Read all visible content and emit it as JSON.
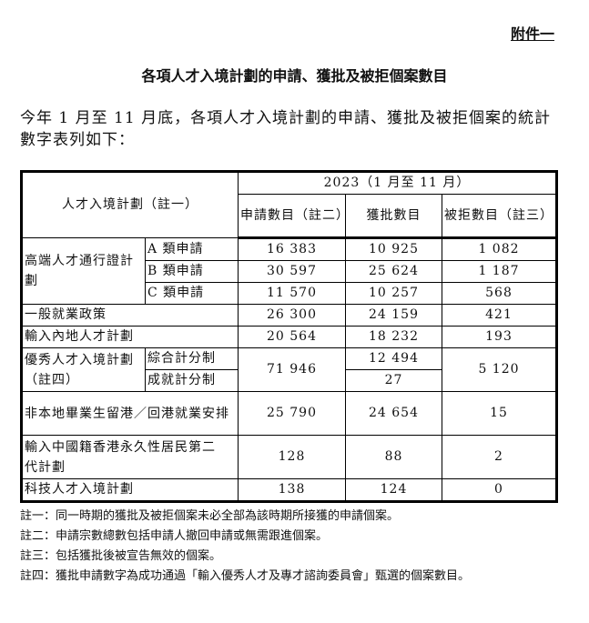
{
  "annex": "附件一",
  "title": "各項人才入境計劃的申請、獲批及被拒個案數目",
  "intro": "今年 1 月至 11 月底，各項人才入境計劃的申請、獲批及被拒個案的統計數字表列如下：",
  "table": {
    "col_scheme": "人才入境計劃（註一）",
    "period": "2023（1 月至 11 月）",
    "col_applied": "申請數目（註二）",
    "col_approved": "獲批數目",
    "col_refused": "被拒數目（註三）",
    "rows": [
      {
        "scheme": "高端人才通行證計劃",
        "sub": "A 類申請",
        "applied": "16 383",
        "approved": "10 925",
        "refused": "1 082"
      },
      {
        "sub": "B 類申請",
        "applied": "30 597",
        "approved": "25 624",
        "refused": "1 187"
      },
      {
        "sub": "C 類申請",
        "applied": "11 570",
        "approved": "10 257",
        "refused": "568"
      },
      {
        "scheme": "一般就業政策",
        "applied": "26 300",
        "approved": "24 159",
        "refused": "421"
      },
      {
        "scheme": "輸入內地人才計劃",
        "applied": "20 564",
        "approved": "18 232",
        "refused": "193"
      },
      {
        "scheme": "優秀人才入境計劃（註四）",
        "sub": "綜合計分制",
        "applied": "71 946",
        "approved": "12 494",
        "refused": "5 120"
      },
      {
        "sub": "成就計分制",
        "approved": "27"
      },
      {
        "scheme": "非本地畢業生留港／回港就業安排",
        "applied": "25 790",
        "approved": "24 654",
        "refused": "15"
      },
      {
        "scheme": "輸入中國籍香港永久性居民第二代計劃",
        "applied": "128",
        "approved": "88",
        "refused": "2"
      },
      {
        "scheme": "科技人才入境計劃",
        "applied": "138",
        "approved": "124",
        "refused": "0"
      }
    ]
  },
  "notes": [
    {
      "k": "註一：",
      "t": "同一時期的獲批及被拒個案未必全部為該時期所接獲的申請個案。"
    },
    {
      "k": "註二：",
      "t": "申請宗數總數包括申請人撤回申請或無需跟進個案。"
    },
    {
      "k": "註三：",
      "t": "包括獲批後被宣告無效的個案。"
    },
    {
      "k": "註四：",
      "t": "獲批申請數字為成功通過「輸入優秀人才及專才諮詢委員會」甄選的個案數目。"
    }
  ]
}
